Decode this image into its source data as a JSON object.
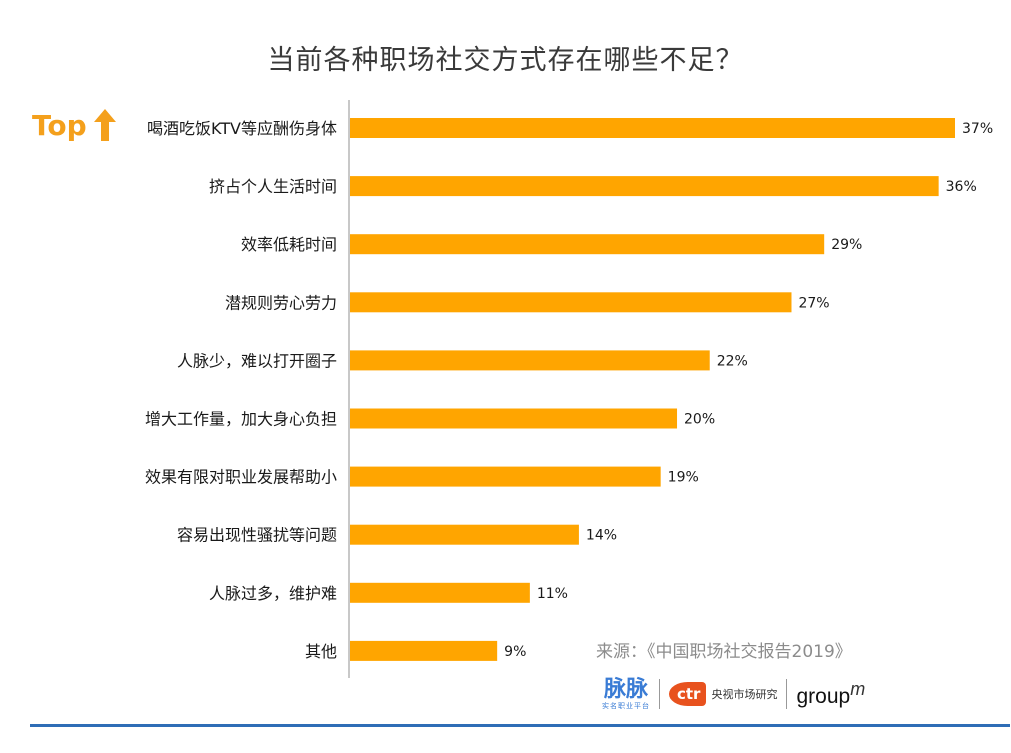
{
  "chart_data": {
    "type": "bar",
    "orientation": "horizontal",
    "title": "当前各种职场社交方式存在哪些不足？",
    "categories": [
      "喝酒吃饭KTV等应酬伤身体",
      "挤占个人生活时间",
      "效率低耗时间",
      "潜规则劳心劳力",
      "人脉少，难以打开圈子",
      "增大工作量，加大身心负担",
      "效果有限对职业发展帮助小",
      "容易出现性骚扰等问题",
      "人脉过多，维护难",
      "其他"
    ],
    "values": [
      37,
      36,
      29,
      27,
      22,
      20,
      19,
      14,
      11,
      9
    ],
    "value_labels": [
      "37%",
      "36%",
      "29%",
      "27%",
      "22%",
      "20%",
      "19%",
      "14%",
      "11%",
      "9%"
    ],
    "xlim": [
      0,
      37
    ],
    "bar_color": "#FFA500",
    "grid": false
  },
  "badge": {
    "text": "Top",
    "icon": "up-arrow-icon",
    "color": "#F4A01C"
  },
  "source": "来源：《中国职场社交报告2019》",
  "logos": {
    "maimai": "脉脉",
    "maimai_sub": "实名职业平台",
    "ctr_mark": "ctr",
    "ctr_text": "央视市场研究",
    "groupm": "group",
    "groupm_suffix": "m"
  },
  "colors": {
    "accent_line": "#2F6DB6",
    "axis": "#c8c8c8"
  }
}
